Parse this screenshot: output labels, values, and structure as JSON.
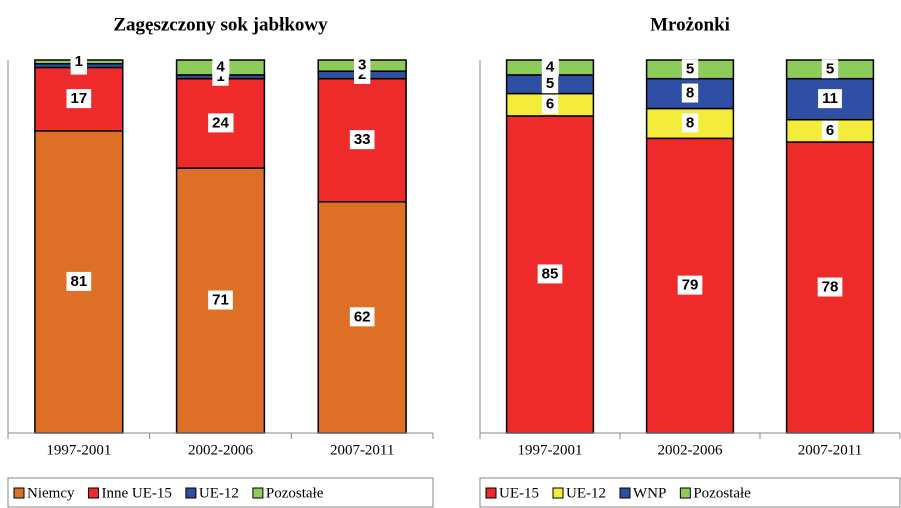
{
  "chart_data": [
    {
      "type": "stacked_bar",
      "title": "Zagęszczony sok jabłkowy",
      "categories": [
        "1997-2001",
        "2002-2006",
        "2007-2011"
      ],
      "series": [
        {
          "name": "Niemcy",
          "color": "#DE6F27",
          "values": [
            81,
            71,
            62
          ]
        },
        {
          "name": "Inne UE-15",
          "color": "#EE2A2A",
          "values": [
            17,
            24,
            33
          ]
        },
        {
          "name": "UE-12",
          "color": "#2E4FA3",
          "values": [
            1,
            1,
            2
          ]
        },
        {
          "name": "Pozostałe",
          "color": "#8DCB5A",
          "values": [
            1,
            4,
            3
          ]
        }
      ],
      "ylim": [
        0,
        100
      ]
    },
    {
      "type": "stacked_bar",
      "title": "Mrożonki",
      "categories": [
        "1997-2001",
        "2002-2006",
        "2007-2011"
      ],
      "series": [
        {
          "name": "UE-15",
          "color": "#EE2A2A",
          "values": [
            85,
            79,
            78
          ]
        },
        {
          "name": "UE-12",
          "color": "#F4EC3A",
          "values": [
            6,
            8,
            6
          ]
        },
        {
          "name": "WNP",
          "color": "#2E4FA3",
          "values": [
            5,
            8,
            11
          ]
        },
        {
          "name": "Pozostałe",
          "color": "#8DCB5A",
          "values": [
            4,
            5,
            5
          ]
        }
      ],
      "ylim": [
        0,
        100
      ]
    }
  ]
}
